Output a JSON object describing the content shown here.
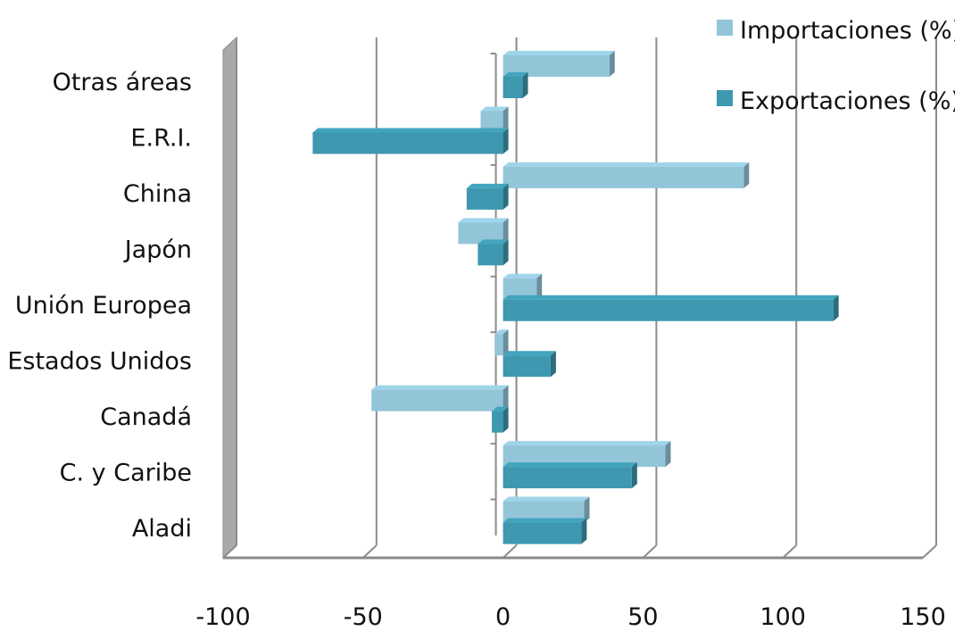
{
  "chart_data": {
    "type": "bar",
    "orientation": "horizontal",
    "three_d": true,
    "categories": [
      "Otras áreas",
      "E.R.I.",
      "China",
      "Japón",
      "Unión Europea",
      "Estados Unidos",
      "Canadá",
      "C. y Caribe",
      "Aladi"
    ],
    "series": [
      {
        "name": "Importaciones (%)",
        "color": "#93c5d9",
        "values": [
          38,
          -8,
          86,
          -16,
          12,
          -3,
          -47,
          58,
          29
        ]
      },
      {
        "name": "Exportaciones (%)",
        "color": "#3d98b0",
        "values": [
          7,
          -68,
          -13,
          -9,
          118,
          17,
          -4,
          46,
          28
        ]
      }
    ],
    "xlim": [
      -100,
      150
    ],
    "xticks": [
      "-100",
      "-50",
      "0",
      "50",
      "100",
      "150"
    ],
    "grid": true,
    "legend": "top-right",
    "title": "",
    "xlabel": "",
    "ylabel": ""
  }
}
